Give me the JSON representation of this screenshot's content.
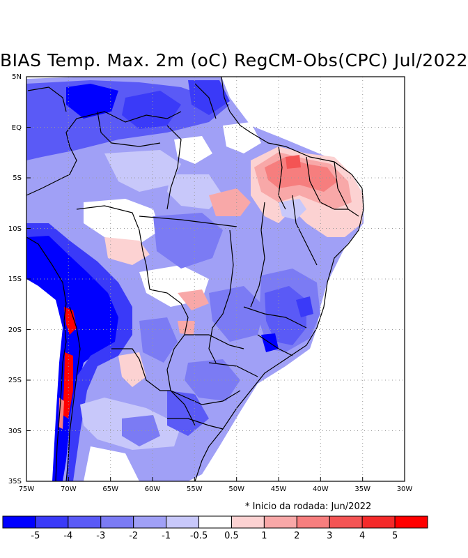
{
  "title": "BIAS Temp. Max. 2m (oC) RegCM-Obs(CPC) Jul/2022",
  "footnote": "* Inicio da rodada: Jun/2022",
  "map": {
    "lon_range": [
      -75,
      -30
    ],
    "lat_range": [
      -35,
      5
    ],
    "lat_ticks": [
      "5N",
      "EQ",
      "5S",
      "10S",
      "15S",
      "20S",
      "25S",
      "30S",
      "35S"
    ],
    "lon_ticks": [
      "75W",
      "70W",
      "65W",
      "60W",
      "55W",
      "50W",
      "45W",
      "40W",
      "35W",
      "30W"
    ],
    "grid": "dotted"
  },
  "colorbar": {
    "colors": [
      "#0000ff",
      "#3a3af8",
      "#5a5af6",
      "#7b7bf4",
      "#a0a0f6",
      "#c8c8fa",
      "#ffffff",
      "#fcd2d2",
      "#f8a8a8",
      "#f67e7e",
      "#f45454",
      "#f42a2a",
      "#ff0000"
    ],
    "labels": [
      "-5",
      "-4",
      "-3",
      "-2",
      "-1",
      "-0.5",
      "0.5",
      "1",
      "2",
      "3",
      "4",
      "5"
    ]
  }
}
